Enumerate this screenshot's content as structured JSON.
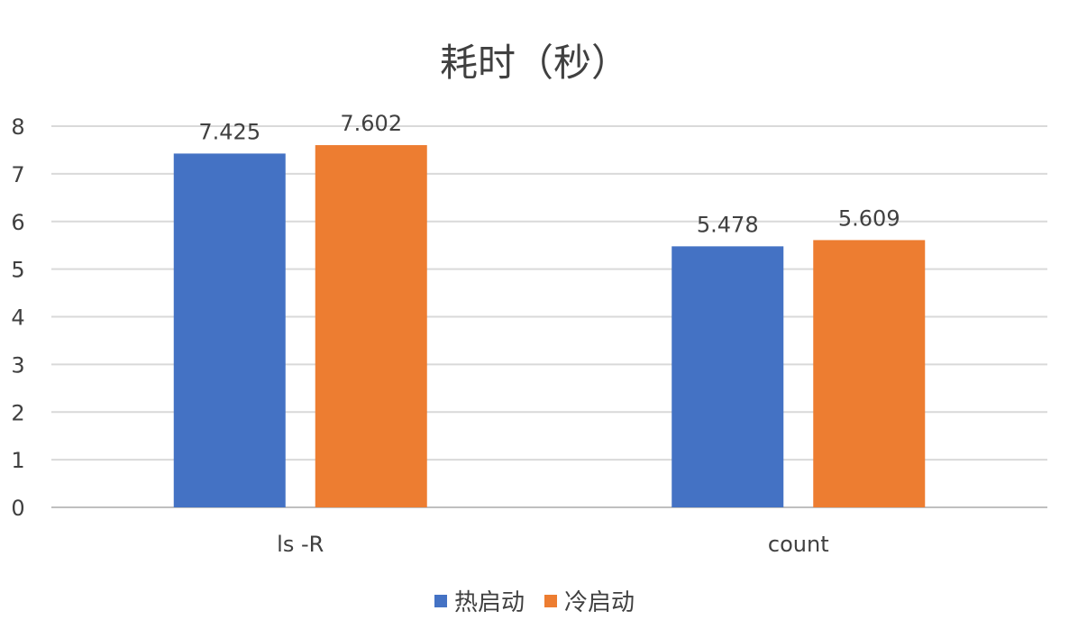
{
  "chart_data": {
    "type": "bar",
    "title": "耗时（秒）",
    "categories": [
      "ls -R",
      "count"
    ],
    "series": [
      {
        "name": "热启动",
        "values": [
          7.425,
          5.478
        ],
        "color": "#4472C4"
      },
      {
        "name": "冷启动",
        "values": [
          7.602,
          5.609
        ],
        "color": "#ED7D31"
      }
    ],
    "ylim": [
      0,
      8
    ],
    "yticks": [
      0,
      1,
      2,
      3,
      4,
      5,
      6,
      7,
      8
    ],
    "data_labels": [
      [
        "7.425",
        "5.478"
      ],
      [
        "7.602",
        "5.609"
      ]
    ],
    "grid": true,
    "legend": "bottom-center"
  }
}
